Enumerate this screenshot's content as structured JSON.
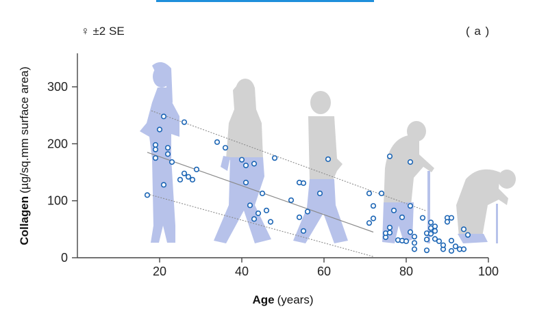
{
  "header": {
    "legend_text": "♀ ±2 SE",
    "panel_label": "( a )"
  },
  "colors": {
    "point": "#1a64b4",
    "fit_line": "#8a8a8a",
    "axis": "#444444",
    "young_silhouette": "#b7c2ea",
    "old_silhouette": "#d2d2d2",
    "rule": "#1f8fdb"
  },
  "chart_data": {
    "type": "scatter",
    "title": "",
    "xlabel": "Age",
    "xlabel_unit": "(years)",
    "ylabel": "Collagen",
    "ylabel_unit": "(µg/sq.mm surface area)",
    "xlim": [
      0,
      100
    ],
    "ylim": [
      0,
      360
    ],
    "xticks": [
      20,
      40,
      60,
      80,
      100
    ],
    "yticks": [
      0,
      100,
      200,
      300
    ],
    "grid": false,
    "legend": "±2 SE (female), top-left",
    "fit": {
      "x": [
        17,
        72
      ],
      "y": [
        185,
        45
      ]
    },
    "upper_band": {
      "x": [
        18,
        85
      ],
      "y": [
        258,
        82
      ]
    },
    "lower_band": {
      "x": [
        17,
        72
      ],
      "y": [
        112,
        2
      ]
    },
    "points": [
      {
        "x": 17,
        "y": 110
      },
      {
        "x": 19,
        "y": 198
      },
      {
        "x": 19,
        "y": 190
      },
      {
        "x": 19,
        "y": 175
      },
      {
        "x": 20,
        "y": 225
      },
      {
        "x": 21,
        "y": 248
      },
      {
        "x": 21,
        "y": 128
      },
      {
        "x": 22,
        "y": 193
      },
      {
        "x": 22,
        "y": 182
      },
      {
        "x": 23,
        "y": 168
      },
      {
        "x": 25,
        "y": 137
      },
      {
        "x": 26,
        "y": 238
      },
      {
        "x": 26,
        "y": 148
      },
      {
        "x": 27,
        "y": 142
      },
      {
        "x": 28,
        "y": 137
      },
      {
        "x": 29,
        "y": 155
      },
      {
        "x": 34,
        "y": 203
      },
      {
        "x": 36,
        "y": 193
      },
      {
        "x": 40,
        "y": 172
      },
      {
        "x": 41,
        "y": 162
      },
      {
        "x": 41,
        "y": 132
      },
      {
        "x": 42,
        "y": 92
      },
      {
        "x": 43,
        "y": 165
      },
      {
        "x": 43,
        "y": 68
      },
      {
        "x": 44,
        "y": 78
      },
      {
        "x": 45,
        "y": 113
      },
      {
        "x": 46,
        "y": 83
      },
      {
        "x": 47,
        "y": 63
      },
      {
        "x": 48,
        "y": 175
      },
      {
        "x": 52,
        "y": 101
      },
      {
        "x": 54,
        "y": 132
      },
      {
        "x": 54,
        "y": 71
      },
      {
        "x": 55,
        "y": 131
      },
      {
        "x": 55,
        "y": 47
      },
      {
        "x": 56,
        "y": 81
      },
      {
        "x": 59,
        "y": 113
      },
      {
        "x": 61,
        "y": 173
      },
      {
        "x": 71,
        "y": 113
      },
      {
        "x": 71,
        "y": 61
      },
      {
        "x": 72,
        "y": 91
      },
      {
        "x": 72,
        "y": 69
      },
      {
        "x": 74,
        "y": 113
      },
      {
        "x": 75,
        "y": 36
      },
      {
        "x": 75,
        "y": 43
      },
      {
        "x": 76,
        "y": 178
      },
      {
        "x": 76,
        "y": 53
      },
      {
        "x": 76,
        "y": 44
      },
      {
        "x": 77,
        "y": 83
      },
      {
        "x": 78,
        "y": 31
      },
      {
        "x": 79,
        "y": 30
      },
      {
        "x": 79,
        "y": 71
      },
      {
        "x": 80,
        "y": 29
      },
      {
        "x": 81,
        "y": 168
      },
      {
        "x": 81,
        "y": 91
      },
      {
        "x": 81,
        "y": 45
      },
      {
        "x": 82,
        "y": 37
      },
      {
        "x": 82,
        "y": 26
      },
      {
        "x": 82,
        "y": 15
      },
      {
        "x": 84,
        "y": 70
      },
      {
        "x": 85,
        "y": 43
      },
      {
        "x": 85,
        "y": 32
      },
      {
        "x": 85,
        "y": 13
      },
      {
        "x": 86,
        "y": 62
      },
      {
        "x": 86,
        "y": 52
      },
      {
        "x": 86,
        "y": 42
      },
      {
        "x": 87,
        "y": 33
      },
      {
        "x": 87,
        "y": 55
      },
      {
        "x": 87,
        "y": 47
      },
      {
        "x": 88,
        "y": 29
      },
      {
        "x": 89,
        "y": 15
      },
      {
        "x": 89,
        "y": 22
      },
      {
        "x": 90,
        "y": 70
      },
      {
        "x": 90,
        "y": 63
      },
      {
        "x": 91,
        "y": 70
      },
      {
        "x": 91,
        "y": 30
      },
      {
        "x": 91,
        "y": 12
      },
      {
        "x": 92,
        "y": 20
      },
      {
        "x": 93,
        "y": 15
      },
      {
        "x": 94,
        "y": 15
      },
      {
        "x": 94,
        "y": 50
      },
      {
        "x": 95,
        "y": 40
      }
    ]
  }
}
